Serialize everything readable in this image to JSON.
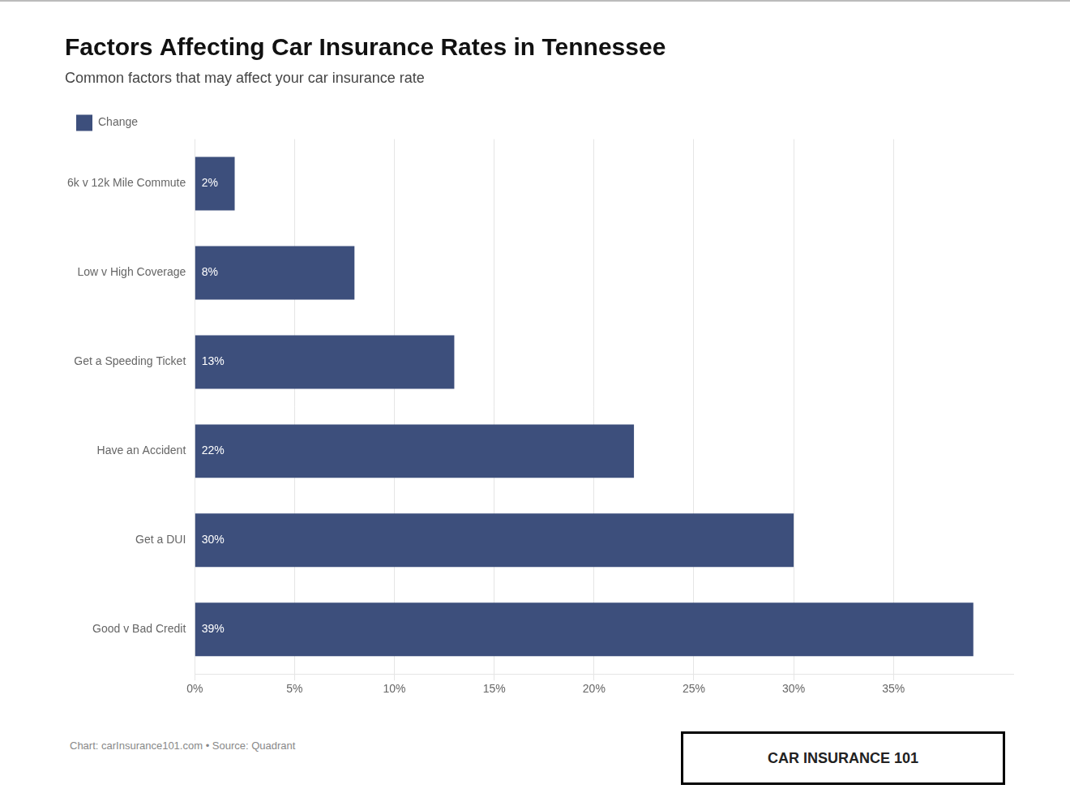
{
  "chart_data": {
    "type": "bar",
    "orientation": "horizontal",
    "title": "Factors Affecting Car Insurance Rates in Tennessee",
    "subtitle": "Common factors that may affect your car insurance rate",
    "categories": [
      "6k v 12k Mile Commute",
      "Low v High Coverage",
      "Get a Speeding Ticket",
      "Have an Accident",
      "Get a DUI",
      "Good v Bad Credit"
    ],
    "series": [
      {
        "name": "Change",
        "color": "#3d4f7c",
        "values": [
          2,
          8,
          13,
          22,
          30,
          39
        ],
        "value_labels": [
          "2%",
          "8%",
          "13%",
          "22%",
          "30%",
          "39%"
        ]
      }
    ],
    "xlim": [
      0,
      41
    ],
    "xticks": [
      {
        "value": 0,
        "label": "0%"
      },
      {
        "value": 5,
        "label": "5%"
      },
      {
        "value": 10,
        "label": "10%"
      },
      {
        "value": 15,
        "label": "15%"
      },
      {
        "value": 20,
        "label": "20%"
      },
      {
        "value": 25,
        "label": "25%"
      },
      {
        "value": 30,
        "label": "30%"
      },
      {
        "value": 35,
        "label": "35%"
      }
    ],
    "grid": "x",
    "legend": "upper left",
    "data_labels": true,
    "annotations": [
      "Chart: carInsurance101.com • Source: Quadrant",
      "CAR INSURANCE 101"
    ]
  }
}
